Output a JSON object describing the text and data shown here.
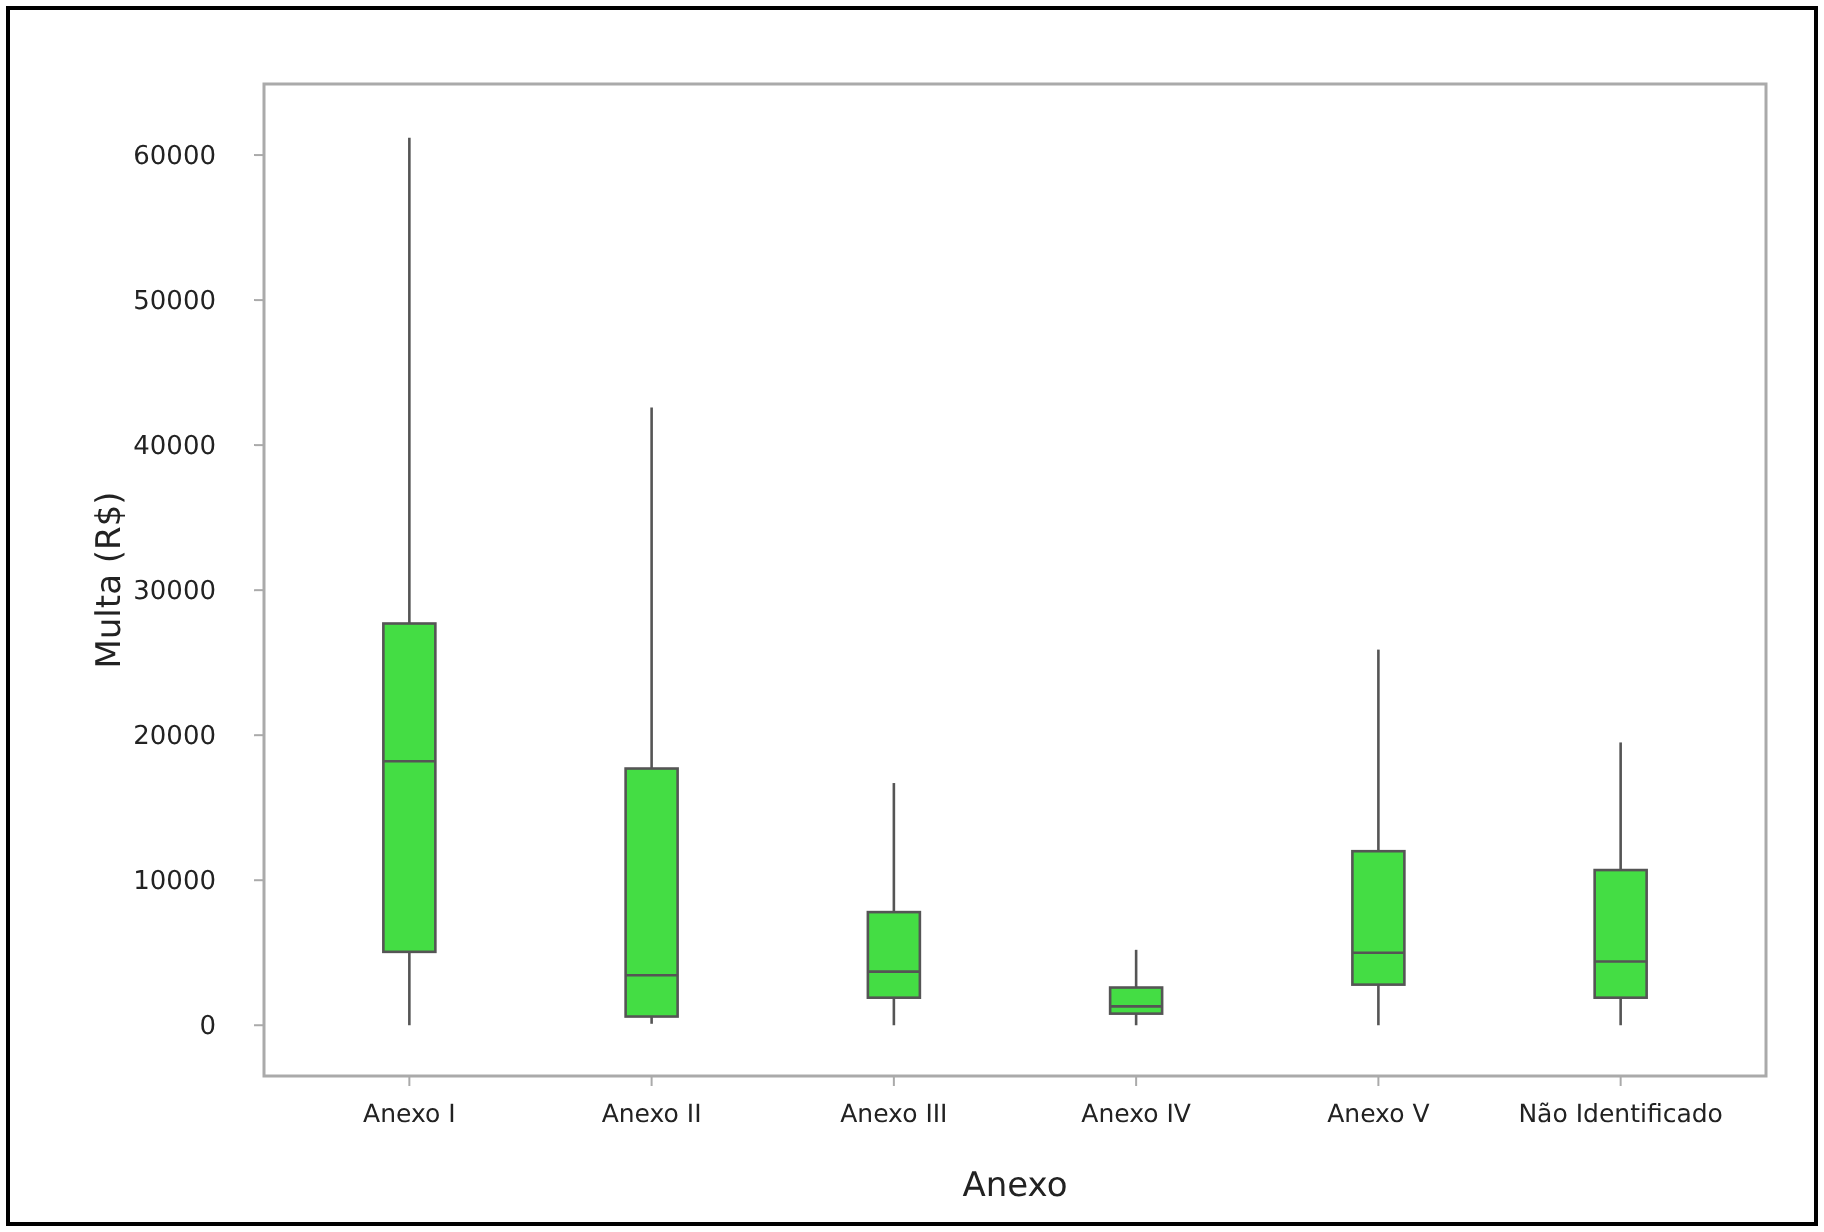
{
  "chart_data": {
    "type": "box",
    "xlabel": "Anexo",
    "ylabel": "Multa (R$)",
    "categories": [
      "Anexo I",
      "Anexo II",
      "Anexo III",
      "Anexo IV",
      "Anexo V",
      "Não Identificado"
    ],
    "boxes": [
      {
        "low": 0,
        "q1": 5060,
        "median": 18200,
        "q3": 27700,
        "high": 61200
      },
      {
        "low": 100,
        "q1": 600,
        "median": 3450,
        "q3": 17700,
        "high": 42600
      },
      {
        "low": 0,
        "q1": 1900,
        "median": 3700,
        "q3": 7800,
        "high": 16700
      },
      {
        "low": 0,
        "q1": 800,
        "median": 1300,
        "q3": 2600,
        "high": 5200
      },
      {
        "low": 0,
        "q1": 2800,
        "median": 5000,
        "q3": 12000,
        "high": 25900
      },
      {
        "low": 0,
        "q1": 1900,
        "median": 4400,
        "q3": 10700,
        "high": 19500
      }
    ],
    "color": "#44dd44",
    "ylim": [
      -3500,
      64900
    ],
    "yticks": [
      0,
      10000,
      20000,
      30000,
      40000,
      50000,
      60000
    ],
    "grid": false
  }
}
